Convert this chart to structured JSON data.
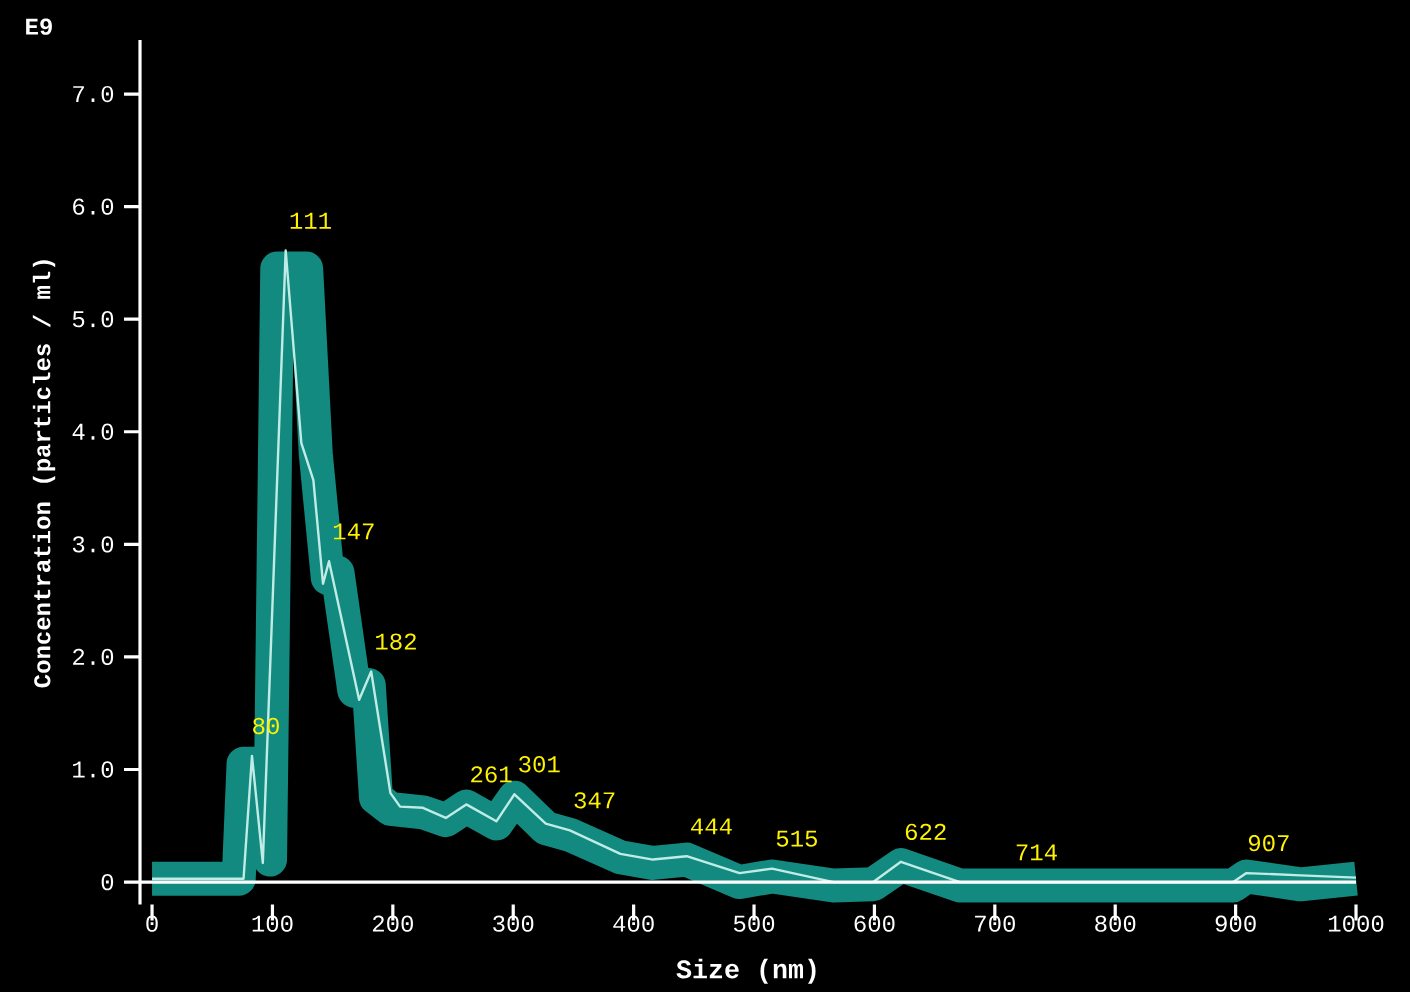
{
  "chart_data": {
    "type": "line",
    "xlabel": "Size (nm)",
    "ylabel": "Concentration (particles / ml)",
    "xlim": [
      -10,
      1000
    ],
    "ylim": [
      -0.2,
      7.48
    ],
    "xticks": [
      0,
      100,
      200,
      300,
      400,
      500,
      600,
      700,
      800,
      900,
      1000
    ],
    "yticks": [
      0,
      {
        "value": 1,
        "label": "1.0"
      },
      {
        "value": 2,
        "label": "2.0"
      },
      {
        "value": 3,
        "label": "3.0"
      },
      {
        "value": 4,
        "label": "4.0"
      },
      {
        "value": 5,
        "label": "5.0"
      },
      {
        "value": 6,
        "label": "6.0"
      },
      {
        "value": 7,
        "label": "7.0"
      }
    ],
    "marker": "none",
    "line_style": "solid",
    "series": [
      {
        "color": "#138a80",
        "x": [
          0,
          72,
          76,
          86,
          98,
          104,
          128,
          136,
          146,
          154,
          168,
          180,
          186,
          198,
          225,
          244,
          261,
          286,
          301,
          327,
          347,
          389,
          416,
          444,
          488,
          515,
          566,
          599,
          622,
          671,
          898,
          909,
          954,
          1000
        ],
        "values": [
          0.03,
          0.03,
          1.05,
          1.05,
          0.2,
          5.45,
          5.45,
          3.8,
          2.7,
          2.75,
          1.7,
          1.75,
          0.75,
          0.65,
          0.62,
          0.55,
          0.67,
          0.52,
          0.75,
          0.48,
          0.42,
          0.22,
          0.17,
          0.2,
          0.0,
          0.05,
          -0.03,
          -0.02,
          0.15,
          -0.03,
          -0.03,
          0.05,
          -0.02,
          0.03
        ]
      },
      {
        "color": "#c0ece6",
        "x": [
          0,
          76,
          83,
          92,
          111,
          124,
          134,
          142,
          147,
          172,
          182,
          198,
          206,
          225,
          244,
          261,
          286,
          301,
          327,
          347,
          389,
          416,
          444,
          488,
          515,
          566,
          599,
          622,
          671,
          898,
          909,
          954,
          1000
        ],
        "values": [
          0.03,
          0.03,
          1.12,
          0.17,
          5.61,
          3.9,
          3.57,
          2.65,
          2.85,
          1.62,
          1.87,
          0.79,
          0.67,
          0.66,
          0.57,
          0.69,
          0.54,
          0.78,
          0.52,
          0.46,
          0.25,
          0.2,
          0.23,
          0.08,
          0.12,
          0,
          0,
          0.18,
          0,
          0,
          0.08,
          0.06,
          0.04
        ]
      }
    ],
    "annotations": [
      "E9",
      {
        "text": "80",
        "x": 80,
        "y": 1.12
      },
      {
        "text": "111",
        "x": 111,
        "y": 5.61
      },
      {
        "text": "147",
        "x": 147,
        "y": 2.85
      },
      {
        "text": "182",
        "x": 182,
        "y": 1.87
      },
      {
        "text": "261",
        "x": 261,
        "y": 0.69
      },
      {
        "text": "301",
        "x": 301,
        "y": 0.78
      },
      {
        "text": "347",
        "x": 347,
        "y": 0.46
      },
      {
        "text": "444",
        "x": 444,
        "y": 0.23
      },
      {
        "text": "515",
        "x": 515,
        "y": 0.12
      },
      {
        "text": "622",
        "x": 622,
        "y": 0.18
      },
      {
        "text": "714",
        "x": 714,
        "y": 0
      },
      {
        "text": "907",
        "x": 907,
        "y": 0.08
      }
    ]
  }
}
